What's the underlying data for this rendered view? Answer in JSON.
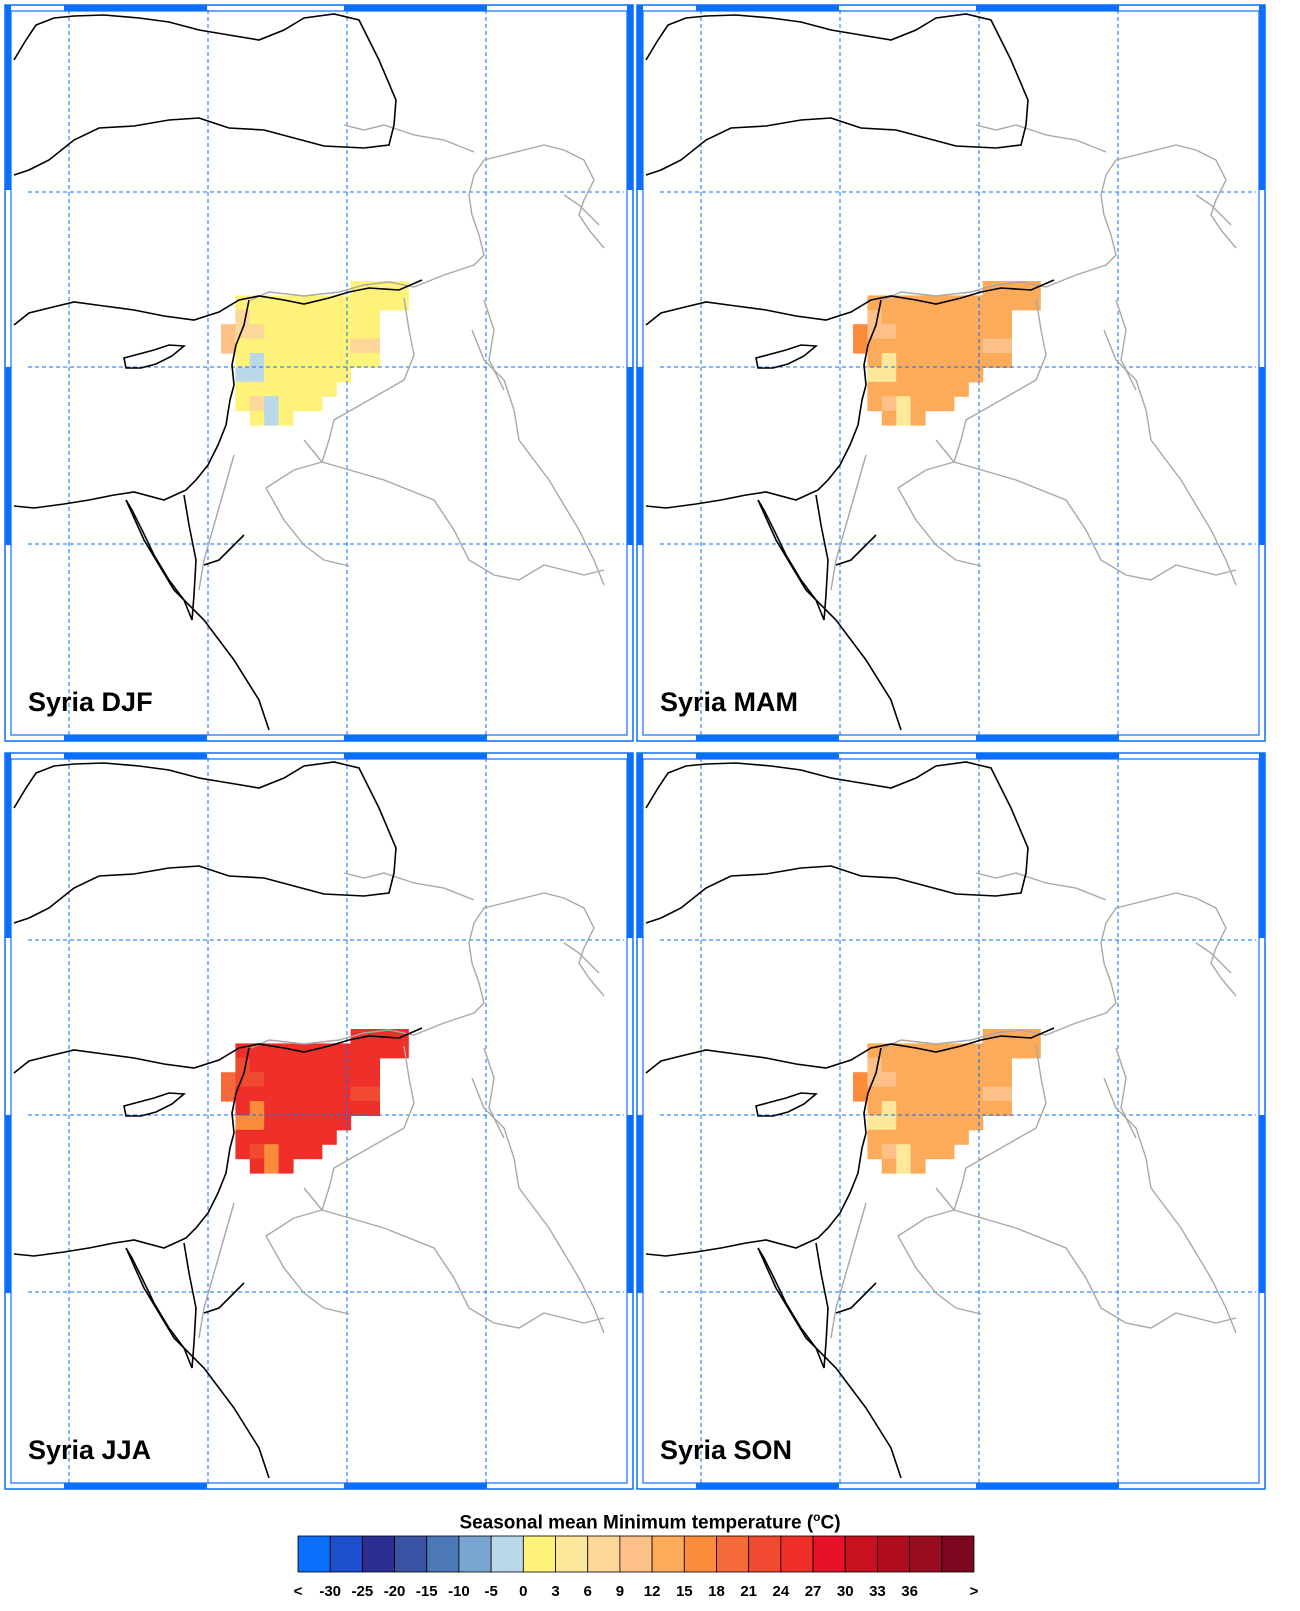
{
  "panels": [
    {
      "label": "Syria DJF",
      "season": "DJF"
    },
    {
      "label": "Syria MAM",
      "season": "MAM"
    },
    {
      "label": "Syria JJA",
      "season": "JJA"
    },
    {
      "label": "Syria SON",
      "season": "SON"
    }
  ],
  "colorbar": {
    "title": "Seasonal mean Minimum temperature (",
    "title_sup": "o",
    "title_unit": "C)",
    "labels": [
      "<",
      "-30",
      "-25",
      "-20",
      "-15",
      "-10",
      "-5",
      "0",
      "3",
      "6",
      "9",
      "12",
      "15",
      "18",
      "21",
      "24",
      "27",
      "30",
      "33",
      "36",
      ">"
    ],
    "colors": [
      "#0b6ffc",
      "#1d4fcf",
      "#2c2e90",
      "#3b53a3",
      "#4d78b8",
      "#79a6d0",
      "#b9d9ea",
      "#fff27a",
      "#fde79a",
      "#fdd69a",
      "#fcc088",
      "#fbab59",
      "#fa8c3c",
      "#f66a3a",
      "#f04a30",
      "#ee2f2a",
      "#e6122a",
      "#c8101e",
      "#b00d1f",
      "#980d1f",
      "#7e0720"
    ]
  },
  "style": {
    "frame_color": "#0b6ffc",
    "grid_color": "#0b6ffc",
    "coast_color": "#000000",
    "border_color": "#a8a8a8"
  }
}
